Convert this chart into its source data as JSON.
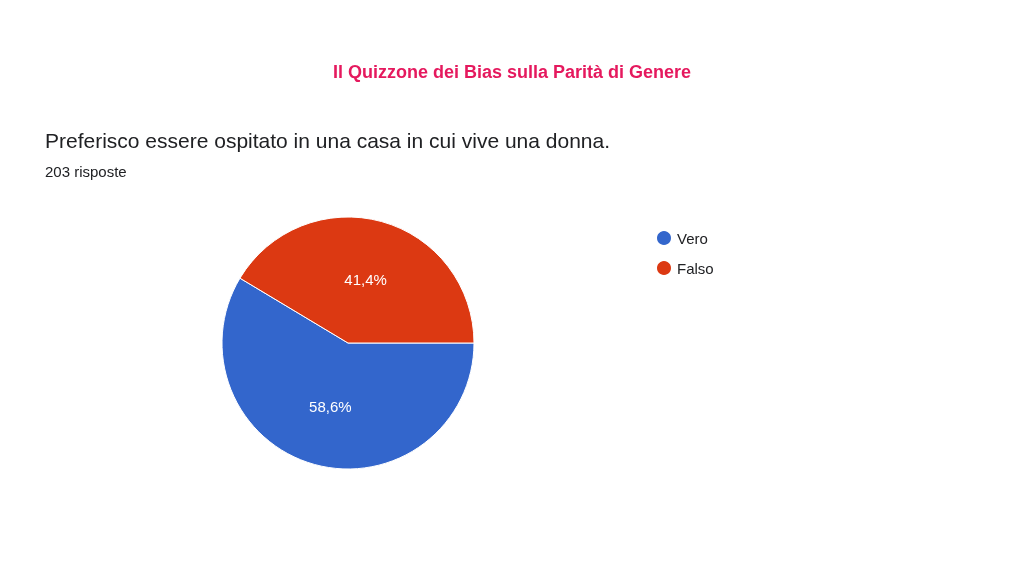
{
  "chart_data": {
    "type": "pie",
    "title": "Il Quizzone dei Bias sulla Parità di Genere",
    "subtitle": "Preferisco essere ospitato in una casa in cui vive una donna.",
    "annotations": [
      "203 risposte"
    ],
    "categories": [
      "Vero",
      "Falso"
    ],
    "values": [
      58.6,
      41.4
    ],
    "colors": [
      "#3366cc",
      "#dc3912"
    ],
    "value_labels": [
      "58,6%",
      "41,4%"
    ],
    "legend": "top right"
  }
}
